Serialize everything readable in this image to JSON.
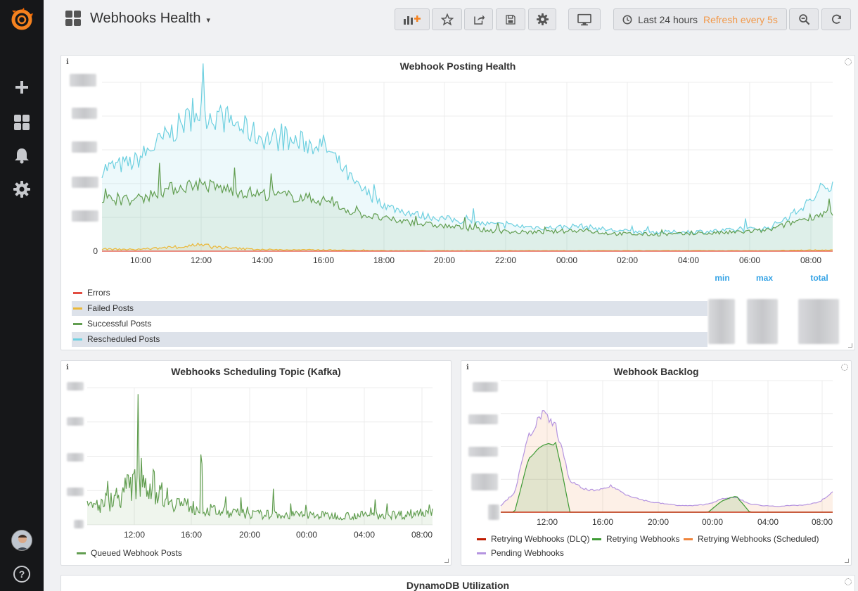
{
  "sidebar": {
    "logo": "grafana-logo-icon",
    "items": [
      {
        "name": "create",
        "icon": "plus-icon"
      },
      {
        "name": "dashboards",
        "icon": "dashboards-icon"
      },
      {
        "name": "alerting",
        "icon": "bell-icon"
      },
      {
        "name": "configuration",
        "icon": "gear-icon"
      }
    ],
    "help_label": "?"
  },
  "header": {
    "title": "Webhooks Health",
    "caret": "▾",
    "time_range": "Last 24 hours",
    "refresh": "Refresh every 5s"
  },
  "panels": {
    "posting_health": {
      "title": "Webhook Posting Health",
      "y_zero": "0",
      "x_ticks": [
        "10:00",
        "12:00",
        "14:00",
        "16:00",
        "18:00",
        "20:00",
        "22:00",
        "00:00",
        "02:00",
        "04:00",
        "06:00",
        "08:00"
      ],
      "legend": [
        {
          "label": "Errors",
          "color": "#e24d42"
        },
        {
          "label": "Failed Posts",
          "color": "#eab839"
        },
        {
          "label": "Successful Posts",
          "color": "#629e51"
        },
        {
          "label": "Rescheduled Posts",
          "color": "#6ed0e0"
        }
      ],
      "stat_headers": [
        "min",
        "max",
        "total"
      ]
    },
    "kafka": {
      "title": "Webhooks Scheduling Topic (Kafka)",
      "x_ticks": [
        "12:00",
        "16:00",
        "20:00",
        "00:00",
        "04:00",
        "08:00"
      ],
      "legend": [
        {
          "label": "Queued Webhook Posts",
          "color": "#629e51"
        }
      ]
    },
    "backlog": {
      "title": "Webhook Backlog",
      "x_ticks": [
        "12:00",
        "16:00",
        "20:00",
        "00:00",
        "04:00",
        "08:00"
      ],
      "legend": [
        {
          "label": "Retrying Webhooks (DLQ)",
          "color": "#bf1b00"
        },
        {
          "label": "Retrying Webhooks",
          "color": "#3f9b35"
        },
        {
          "label": "Retrying Webhooks (Scheduled)",
          "color": "#ef843c"
        },
        {
          "label": "Pending Webhooks",
          "color": "#b594e0"
        }
      ]
    },
    "dynamodb": {
      "title": "DynamoDB Utilization"
    }
  },
  "chart_data": [
    {
      "type": "line",
      "title": "Webhook Posting Health",
      "x": [
        "10:00",
        "11:00",
        "12:00",
        "13:00",
        "14:00",
        "15:00",
        "16:00",
        "17:00",
        "18:00",
        "19:00",
        "20:00",
        "21:00",
        "22:00",
        "23:00",
        "00:00",
        "01:00",
        "02:00",
        "03:00",
        "04:00",
        "05:00",
        "06:00",
        "07:00",
        "08:00",
        "08:30"
      ],
      "series": [
        {
          "name": "Errors",
          "values": [
            0,
            0,
            0,
            0,
            0,
            0,
            0,
            0,
            0,
            0,
            0,
            0,
            0,
            0,
            0,
            0,
            0,
            0,
            0,
            0,
            0,
            0,
            0,
            0
          ]
        },
        {
          "name": "Failed Posts",
          "values": [
            0.05,
            0.04,
            0.08,
            0.14,
            0.07,
            0.04,
            0.03,
            0.03,
            0.02,
            0.01,
            0.01,
            0.01,
            0.01,
            0.01,
            0.01,
            0.01,
            0.01,
            0.01,
            0.01,
            0.01,
            0.01,
            0.01,
            0.02,
            0.03
          ]
        },
        {
          "name": "Successful Posts",
          "values": [
            1.25,
            1.2,
            1.45,
            1.6,
            1.45,
            1.35,
            1.3,
            1.2,
            0.9,
            0.75,
            0.65,
            0.58,
            0.5,
            0.45,
            0.45,
            0.5,
            0.42,
            0.4,
            0.4,
            0.42,
            0.45,
            0.5,
            0.75,
            0.95
          ]
        },
        {
          "name": "Rescheduled Posts",
          "values": [
            1.95,
            2.1,
            2.7,
            3.3,
            3.1,
            2.7,
            2.6,
            2.5,
            1.55,
            1.05,
            0.85,
            0.75,
            0.65,
            0.6,
            0.55,
            0.6,
            0.5,
            0.45,
            0.45,
            0.47,
            0.5,
            0.55,
            1.0,
            1.65
          ]
        }
      ],
      "ylim": [
        0,
        4
      ],
      "legend": "bottom-left",
      "grid": true
    },
    {
      "type": "line",
      "title": "Webhooks Scheduling Topic (Kafka)",
      "x": [
        "09:00",
        "10:00",
        "11:00",
        "12:00",
        "13:00",
        "14:00",
        "15:00",
        "16:00",
        "17:00",
        "18:00",
        "19:00",
        "20:00",
        "21:00",
        "22:00",
        "23:00",
        "00:00",
        "01:00",
        "02:00",
        "03:00",
        "04:00",
        "05:00",
        "06:00",
        "07:00",
        "08:00",
        "08:30"
      ],
      "series": [
        {
          "name": "Queued Webhook Posts",
          "values": [
            0.5,
            0.6,
            0.8,
            1.1,
            1.3,
            1.0,
            0.7,
            0.55,
            0.45,
            0.4,
            0.35,
            0.32,
            0.3,
            0.3,
            0.28,
            0.3,
            0.28,
            0.27,
            0.27,
            0.28,
            0.28,
            0.3,
            0.3,
            0.35,
            0.5
          ]
        }
      ],
      "ylim": [
        0,
        4
      ],
      "legend": "bottom-left",
      "grid": true
    },
    {
      "type": "area",
      "title": "Webhook Backlog",
      "x": [
        "09:00",
        "10:00",
        "11:00",
        "12:00",
        "13:00",
        "14:00",
        "15:00",
        "16:00",
        "17:00",
        "18:00",
        "19:00",
        "20:00",
        "21:00",
        "22:00",
        "23:00",
        "00:00",
        "01:00",
        "02:00",
        "03:00",
        "04:00",
        "05:00",
        "06:00",
        "07:00",
        "08:00",
        "08:30"
      ],
      "series": [
        {
          "name": "Retrying Webhooks (DLQ)",
          "values": [
            0,
            0,
            0,
            0,
            0,
            0,
            0,
            0,
            0,
            0,
            0,
            0,
            0,
            0,
            0,
            0,
            0,
            0,
            0,
            0,
            0,
            0,
            0,
            0,
            0
          ]
        },
        {
          "name": "Retrying Webhooks",
          "values": [
            0,
            0,
            1.6,
            2.05,
            2.1,
            0,
            0,
            0,
            0,
            0,
            0,
            0,
            0,
            0,
            0,
            0,
            0.35,
            0.5,
            0,
            0,
            0,
            0,
            0,
            0,
            0
          ]
        },
        {
          "name": "Retrying Webhooks (Scheduled)",
          "values": [
            0,
            0,
            0,
            0,
            0,
            0,
            0,
            0,
            0,
            0,
            0,
            0,
            0,
            0,
            0,
            0,
            0,
            0,
            0,
            0,
            0,
            0,
            0,
            0,
            0
          ]
        },
        {
          "name": "Pending Webhooks",
          "values": [
            0.2,
            0.6,
            2.3,
            3.0,
            2.6,
            0.95,
            0.7,
            0.65,
            0.8,
            0.55,
            0.4,
            0.3,
            0.25,
            0.2,
            0.2,
            0.25,
            0.4,
            0.45,
            0.25,
            0.2,
            0.18,
            0.2,
            0.22,
            0.3,
            0.6
          ]
        }
      ],
      "ylim": [
        0,
        4
      ],
      "legend": "bottom-left",
      "grid": true
    }
  ]
}
